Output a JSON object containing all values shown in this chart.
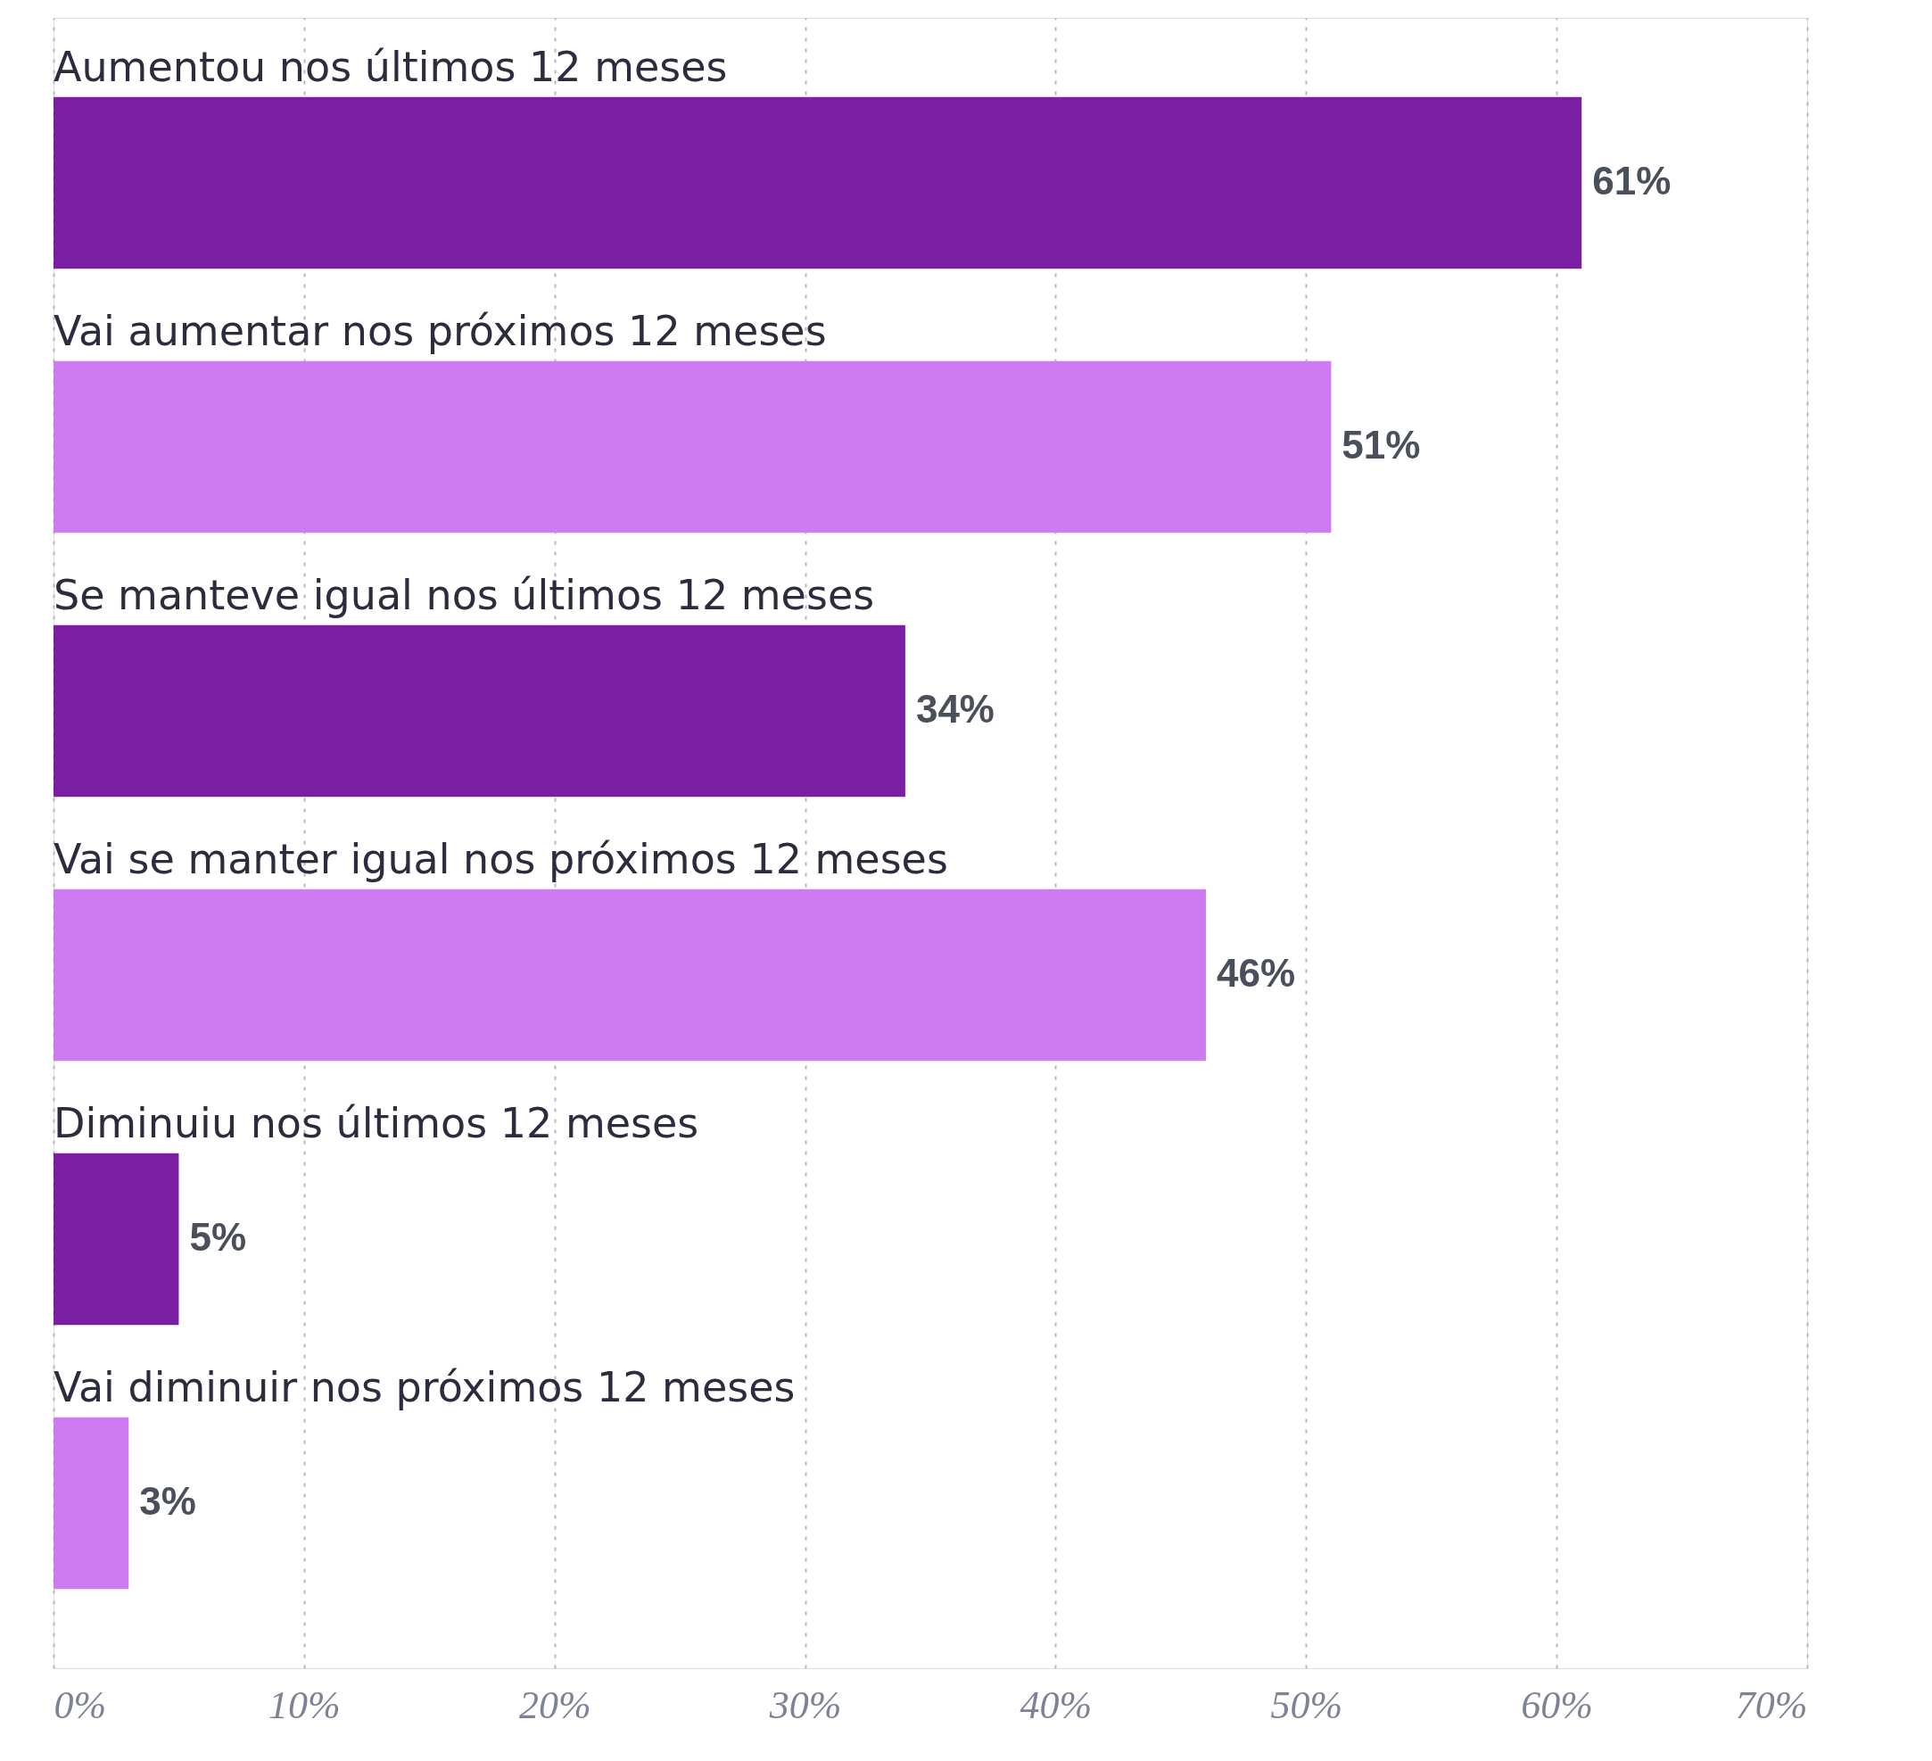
{
  "chart_data": {
    "type": "bar",
    "orientation": "horizontal",
    "categories": [
      "Aumentou nos últimos 12 meses",
      "Vai aumentar nos próximos 12 meses",
      "Se manteve igual nos últimos 12 meses",
      "Vai se manter igual nos próximos 12 meses",
      "Diminuiu nos últimos 12 meses",
      "Vai diminuir nos próximos 12 meses"
    ],
    "values": [
      61,
      51,
      34,
      46,
      5,
      3
    ],
    "colors": [
      "#7b1fa2",
      "#cc7bf0",
      "#7b1fa2",
      "#cc7bf0",
      "#7b1fa2",
      "#cc7bf0"
    ],
    "value_labels": [
      "61%",
      "51%",
      "34%",
      "46%",
      "5%",
      "3%"
    ],
    "xlim": [
      0,
      70
    ],
    "xticks": [
      {
        "value": 0,
        "label": "0%"
      },
      {
        "value": 10,
        "label": "10%"
      },
      {
        "value": 20,
        "label": "20%"
      },
      {
        "value": 30,
        "label": "30%"
      },
      {
        "value": 40,
        "label": "40%"
      },
      {
        "value": 50,
        "label": "50%"
      },
      {
        "value": 60,
        "label": "60%"
      },
      {
        "value": 70,
        "label": "70%"
      }
    ],
    "grid": "x"
  }
}
